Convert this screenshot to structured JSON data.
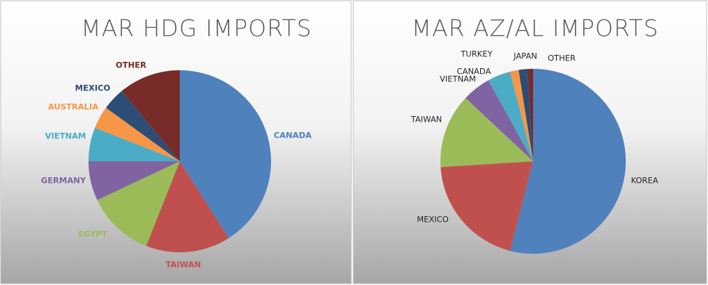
{
  "chart_data": [
    {
      "type": "pie",
      "title": "MAR HDG IMPORTS",
      "label_colors": true,
      "categories": [
        "CANADA",
        "TAIWAN",
        "EGYPT",
        "GERMANY",
        "VIETNAM",
        "AUSTRALIA",
        "MEXICO",
        "OTHER"
      ],
      "values": [
        41,
        15,
        12,
        7,
        6,
        4,
        4,
        11
      ],
      "colors": [
        "#4f81bd",
        "#c0504d",
        "#9bbb59",
        "#8064a2",
        "#4bacc6",
        "#f79646",
        "#2c4d75",
        "#772c2a"
      ]
    },
    {
      "type": "pie",
      "title": "MAR AZ/AL IMPORTS",
      "label_colors": false,
      "categories": [
        "KOREA",
        "MEXICO",
        "TAIWAN",
        "VIETNAM",
        "CANADA",
        "TURKEY",
        "JAPAN",
        "OTHER"
      ],
      "values": [
        54,
        20,
        13,
        5,
        4,
        1.5,
        1.5,
        1
      ],
      "colors": [
        "#4f81bd",
        "#c0504d",
        "#9bbb59",
        "#8064a2",
        "#4bacc6",
        "#f79646",
        "#2c4d75",
        "#772c2a"
      ]
    }
  ]
}
